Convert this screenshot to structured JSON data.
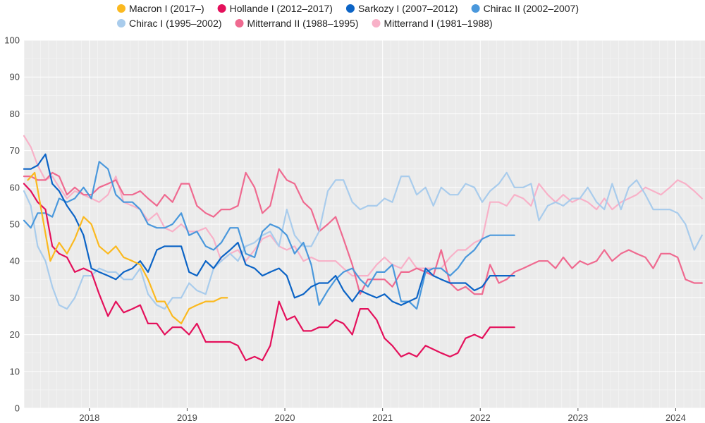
{
  "chart_data": {
    "type": "line",
    "ylim": [
      0,
      100
    ],
    "y_ticks": [
      "0",
      "10",
      "20",
      "30",
      "40",
      "50",
      "60",
      "70",
      "80",
      "90",
      "100"
    ],
    "x_ticks": [
      "2018",
      "2019",
      "2020",
      "2021",
      "2022",
      "2023",
      "2024"
    ],
    "xlim": [
      2017.33,
      2024.3
    ],
    "grid": true,
    "legend_position": "top",
    "series": [
      {
        "name": "Macron I (2017–)",
        "color": "#fbb91f",
        "x": [
          2017.37,
          2017.44,
          2017.52,
          2017.6,
          2017.69,
          2017.77,
          2017.85,
          2017.94,
          2018.02,
          2018.1,
          2018.19,
          2018.27,
          2018.35,
          2018.44,
          2018.52,
          2018.6,
          2018.69,
          2018.77,
          2018.85,
          2018.94,
          2019.02,
          2019.1,
          2019.19,
          2019.27,
          2019.35,
          2019.41
        ],
        "y": [
          62,
          64,
          52,
          40,
          45,
          42,
          46,
          52,
          50,
          44,
          42,
          44,
          41,
          40,
          39,
          35,
          29,
          29,
          25,
          23,
          27,
          28,
          29,
          29,
          30,
          30
        ]
      },
      {
        "name": "Hollande I (2012–2017)",
        "color": "#e4105b",
        "x": [
          2017.33,
          2017.4,
          2017.47,
          2017.55,
          2017.62,
          2017.69,
          2017.77,
          2017.85,
          2017.94,
          2018.02,
          2018.1,
          2018.19,
          2018.27,
          2018.35,
          2018.44,
          2018.52,
          2018.6,
          2018.69,
          2018.77,
          2018.85,
          2018.94,
          2019.02,
          2019.1,
          2019.19,
          2019.27,
          2019.35,
          2019.44,
          2019.52,
          2019.6,
          2019.69,
          2019.77,
          2019.85,
          2019.94,
          2020.02,
          2020.1,
          2020.19,
          2020.27,
          2020.35,
          2020.44,
          2020.52,
          2020.6,
          2020.69,
          2020.77,
          2020.85,
          2020.94,
          2021.02,
          2021.1,
          2021.19,
          2021.27,
          2021.35,
          2021.44,
          2021.52,
          2021.6,
          2021.69,
          2021.77,
          2021.85,
          2021.94,
          2022.02,
          2022.1,
          2022.19,
          2022.27,
          2022.35
        ],
        "y": [
          61,
          59,
          56,
          54,
          44,
          42,
          41,
          37,
          38,
          37,
          31,
          25,
          29,
          26,
          27,
          28,
          23,
          23,
          20,
          22,
          22,
          20,
          23,
          18,
          18,
          18,
          18,
          17,
          13,
          14,
          13,
          17,
          29,
          24,
          25,
          21,
          21,
          22,
          22,
          24,
          23,
          20,
          27,
          27,
          24,
          19,
          17,
          14,
          15,
          14,
          17,
          16,
          15,
          14,
          15,
          19,
          20,
          19,
          22,
          22,
          22,
          22
        ]
      },
      {
        "name": "Sarkozy I (2007–2012)",
        "color": "#0c64c6",
        "x": [
          2017.33,
          2017.4,
          2017.47,
          2017.55,
          2017.62,
          2017.69,
          2017.77,
          2017.85,
          2017.94,
          2018.02,
          2018.1,
          2018.19,
          2018.27,
          2018.35,
          2018.44,
          2018.52,
          2018.6,
          2018.69,
          2018.77,
          2018.85,
          2018.94,
          2019.02,
          2019.1,
          2019.19,
          2019.27,
          2019.35,
          2019.44,
          2019.52,
          2019.6,
          2019.69,
          2019.77,
          2019.85,
          2019.94,
          2020.02,
          2020.1,
          2020.19,
          2020.27,
          2020.35,
          2020.44,
          2020.52,
          2020.6,
          2020.69,
          2020.77,
          2020.85,
          2020.94,
          2021.02,
          2021.1,
          2021.19,
          2021.27,
          2021.35,
          2021.44,
          2021.52,
          2021.6,
          2021.69,
          2021.77,
          2021.85,
          2021.94,
          2022.02,
          2022.1,
          2022.19,
          2022.27,
          2022.35
        ],
        "y": [
          65,
          65,
          66,
          69,
          61,
          59,
          55,
          52,
          47,
          38,
          37,
          36,
          35,
          37,
          38,
          40,
          37,
          43,
          44,
          44,
          44,
          37,
          36,
          40,
          38,
          41,
          43,
          45,
          39,
          38,
          36,
          37,
          38,
          36,
          30,
          31,
          33,
          34,
          34,
          36,
          32,
          29,
          32,
          31,
          30,
          31,
          29,
          28,
          29,
          30,
          38,
          36,
          35,
          34,
          34,
          34,
          32,
          33,
          36,
          36,
          36,
          36
        ]
      },
      {
        "name": "Chirac II (2002–2007)",
        "color": "#4a98dc",
        "x": [
          2017.33,
          2017.4,
          2017.47,
          2017.55,
          2017.62,
          2017.69,
          2017.77,
          2017.85,
          2017.94,
          2018.02,
          2018.1,
          2018.19,
          2018.27,
          2018.35,
          2018.44,
          2018.52,
          2018.6,
          2018.69,
          2018.77,
          2018.85,
          2018.94,
          2019.02,
          2019.1,
          2019.19,
          2019.27,
          2019.35,
          2019.44,
          2019.52,
          2019.6,
          2019.69,
          2019.77,
          2019.85,
          2019.94,
          2020.02,
          2020.1,
          2020.19,
          2020.27,
          2020.35,
          2020.44,
          2020.52,
          2020.6,
          2020.69,
          2020.77,
          2020.85,
          2020.94,
          2021.02,
          2021.1,
          2021.19,
          2021.27,
          2021.35,
          2021.44,
          2021.52,
          2021.6,
          2021.69,
          2021.77,
          2021.85,
          2021.94,
          2022.02,
          2022.1,
          2022.19,
          2022.27,
          2022.35
        ],
        "y": [
          51,
          49,
          53,
          53,
          52,
          57,
          56,
          57,
          60,
          57,
          67,
          65,
          58,
          56,
          56,
          54,
          50,
          49,
          49,
          50,
          53,
          47,
          48,
          44,
          43,
          45,
          49,
          49,
          42,
          41,
          48,
          50,
          49,
          47,
          42,
          45,
          39,
          28,
          32,
          35,
          37,
          38,
          35,
          33,
          37,
          37,
          39,
          29,
          29,
          27,
          37,
          38,
          38,
          36,
          38,
          41,
          43,
          46,
          47,
          47,
          47,
          47
        ]
      },
      {
        "name": "Chirac I (1995–2002)",
        "color": "#a9ccec",
        "x": [
          2017.33,
          2017.4,
          2017.47,
          2017.55,
          2017.62,
          2017.69,
          2017.77,
          2017.85,
          2017.94,
          2018.02,
          2018.1,
          2018.19,
          2018.27,
          2018.35,
          2018.44,
          2018.52,
          2018.6,
          2018.69,
          2018.77,
          2018.85,
          2018.94,
          2019.02,
          2019.1,
          2019.19,
          2019.27,
          2019.35,
          2019.44,
          2019.52,
          2019.6,
          2019.69,
          2019.77,
          2019.85,
          2019.94,
          2020.02,
          2020.1,
          2020.19,
          2020.27,
          2020.35,
          2020.44,
          2020.52,
          2020.6,
          2020.69,
          2020.77,
          2020.85,
          2020.94,
          2021.02,
          2021.1,
          2021.19,
          2021.27,
          2021.35,
          2021.44,
          2021.52,
          2021.6,
          2021.69,
          2021.77,
          2021.85,
          2021.94,
          2022.02,
          2022.1,
          2022.19,
          2022.27,
          2022.35,
          2022.44,
          2022.52,
          2022.6,
          2022.69,
          2022.77,
          2022.85,
          2022.94,
          2023.02,
          2023.1,
          2023.19,
          2023.27,
          2023.35,
          2023.44,
          2023.52,
          2023.6,
          2023.69,
          2023.77,
          2023.85,
          2023.94,
          2024.02,
          2024.1,
          2024.19,
          2024.27
        ],
        "y": [
          59,
          55,
          44,
          40,
          33,
          28,
          27,
          30,
          36,
          36,
          38,
          37,
          37,
          35,
          35,
          38,
          31,
          28,
          27,
          30,
          30,
          34,
          32,
          31,
          38,
          40,
          42,
          40,
          44,
          45,
          47,
          48,
          44,
          54,
          47,
          44,
          44,
          48,
          59,
          62,
          62,
          56,
          54,
          55,
          55,
          57,
          56,
          63,
          63,
          58,
          60,
          55,
          60,
          58,
          58,
          61,
          60,
          56,
          59,
          61,
          64,
          60,
          60,
          61,
          51,
          55,
          56,
          55,
          57,
          57,
          60,
          56,
          54,
          61,
          54,
          60,
          62,
          58,
          54,
          54,
          54,
          53,
          50,
          43,
          47
        ]
      },
      {
        "name": "Mitterrand II (1988–1995)",
        "color": "#ef6a90",
        "x": [
          2017.33,
          2017.4,
          2017.47,
          2017.55,
          2017.62,
          2017.69,
          2017.77,
          2017.85,
          2017.94,
          2018.02,
          2018.1,
          2018.19,
          2018.27,
          2018.35,
          2018.44,
          2018.52,
          2018.6,
          2018.69,
          2018.77,
          2018.85,
          2018.94,
          2019.02,
          2019.1,
          2019.19,
          2019.27,
          2019.35,
          2019.44,
          2019.52,
          2019.6,
          2019.69,
          2019.77,
          2019.85,
          2019.94,
          2020.02,
          2020.1,
          2020.19,
          2020.27,
          2020.35,
          2020.44,
          2020.52,
          2020.6,
          2020.69,
          2020.77,
          2020.85,
          2020.94,
          2021.02,
          2021.1,
          2021.19,
          2021.27,
          2021.35,
          2021.44,
          2021.52,
          2021.6,
          2021.69,
          2021.77,
          2021.85,
          2021.94,
          2022.02,
          2022.1,
          2022.19,
          2022.27,
          2022.35,
          2022.44,
          2022.52,
          2022.6,
          2022.69,
          2022.77,
          2022.85,
          2022.94,
          2023.02,
          2023.1,
          2023.19,
          2023.27,
          2023.35,
          2023.44,
          2023.52,
          2023.6,
          2023.69,
          2023.77,
          2023.85,
          2023.94,
          2024.02,
          2024.1,
          2024.19,
          2024.27
        ],
        "y": [
          63,
          63,
          62,
          62,
          64,
          63,
          58,
          60,
          58,
          58,
          60,
          61,
          62,
          58,
          58,
          59,
          57,
          55,
          58,
          56,
          61,
          61,
          55,
          53,
          52,
          54,
          54,
          55,
          64,
          60,
          53,
          55,
          65,
          62,
          61,
          56,
          54,
          48,
          50,
          52,
          46,
          39,
          31,
          35,
          35,
          35,
          33,
          37,
          37,
          38,
          37,
          36,
          43,
          34,
          32,
          33,
          31,
          31,
          39,
          34,
          35,
          37,
          38,
          39,
          40,
          40,
          38,
          41,
          38,
          40,
          39,
          40,
          43,
          40,
          42,
          43,
          42,
          41,
          38,
          42,
          42,
          41,
          35,
          34,
          34
        ]
      },
      {
        "name": "Mitterrand I (1981–1988)",
        "color": "#f8b1c8",
        "x": [
          2017.33,
          2017.4,
          2017.47,
          2017.55,
          2017.62,
          2017.69,
          2017.77,
          2017.85,
          2017.94,
          2018.02,
          2018.1,
          2018.19,
          2018.27,
          2018.35,
          2018.44,
          2018.52,
          2018.6,
          2018.69,
          2018.77,
          2018.85,
          2018.94,
          2019.02,
          2019.1,
          2019.19,
          2019.27,
          2019.35,
          2019.44,
          2019.52,
          2019.6,
          2019.69,
          2019.77,
          2019.85,
          2019.94,
          2020.02,
          2020.1,
          2020.19,
          2020.27,
          2020.35,
          2020.44,
          2020.52,
          2020.6,
          2020.69,
          2020.77,
          2020.85,
          2020.94,
          2021.02,
          2021.1,
          2021.19,
          2021.27,
          2021.35,
          2021.44,
          2021.52,
          2021.6,
          2021.69,
          2021.77,
          2021.85,
          2021.94,
          2022.02,
          2022.1,
          2022.19,
          2022.27,
          2022.35,
          2022.44,
          2022.52,
          2022.6,
          2022.69,
          2022.77,
          2022.85,
          2022.94,
          2023.02,
          2023.1,
          2023.19,
          2023.27,
          2023.35,
          2023.44,
          2023.52,
          2023.6,
          2023.69,
          2023.77,
          2023.85,
          2023.94,
          2024.02,
          2024.1,
          2024.19,
          2024.27
        ],
        "y": [
          74,
          71,
          66,
          62,
          63,
          60,
          57,
          59,
          58,
          57,
          56,
          58,
          63,
          56,
          55,
          54,
          51,
          53,
          49,
          48,
          50,
          48,
          48,
          49,
          46,
          40,
          42,
          43,
          40,
          43,
          46,
          47,
          44,
          43,
          44,
          40,
          41,
          40,
          40,
          40,
          38,
          36,
          36,
          36,
          39,
          41,
          39,
          38,
          41,
          38,
          38,
          38,
          38,
          41,
          43,
          43,
          45,
          46,
          56,
          56,
          55,
          58,
          57,
          55,
          61,
          58,
          56,
          58,
          56,
          57,
          56,
          54,
          57,
          54,
          56,
          57,
          58,
          60,
          59,
          58,
          60,
          62,
          61,
          59,
          57
        ]
      }
    ]
  }
}
